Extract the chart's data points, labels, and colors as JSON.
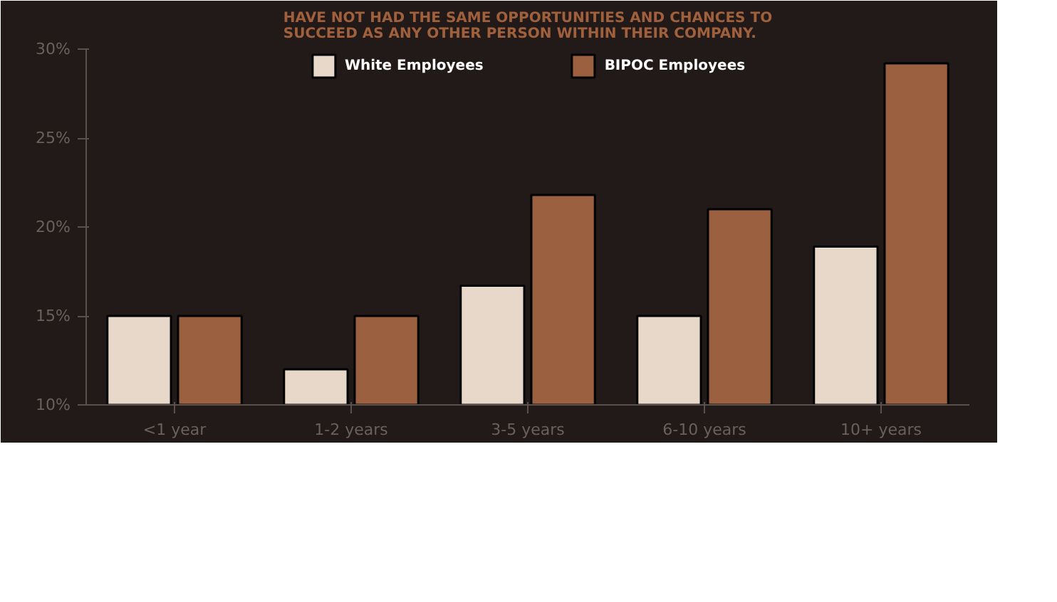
{
  "chart_data": {
    "type": "bar",
    "title": "HAVE NOT HAD THE SAME OPPORTUNITIES AND CHANCES TO\nSUCCEED AS ANY OTHER PERSON WITHIN THEIR COMPANY.",
    "categories": [
      "<1 year",
      "1-2 years",
      "3-5 years",
      "6-10 years",
      "10+ years"
    ],
    "series": [
      {
        "name": "White Employees",
        "color": "#e8d8ca",
        "values": [
          15,
          12,
          16.7,
          15,
          18.9
        ]
      },
      {
        "name": "BIPOC Employees",
        "color": "#9a6040",
        "values": [
          15,
          15,
          21.8,
          21,
          29.2
        ]
      }
    ],
    "ylim": [
      10,
      30
    ],
    "yticks": [
      {
        "value": 10,
        "label": "10%"
      },
      {
        "value": 15,
        "label": "15%"
      },
      {
        "value": 20,
        "label": "20%"
      },
      {
        "value": 25,
        "label": "25%"
      },
      {
        "value": 30,
        "label": "30%"
      }
    ],
    "grid": false,
    "legend": "top"
  }
}
